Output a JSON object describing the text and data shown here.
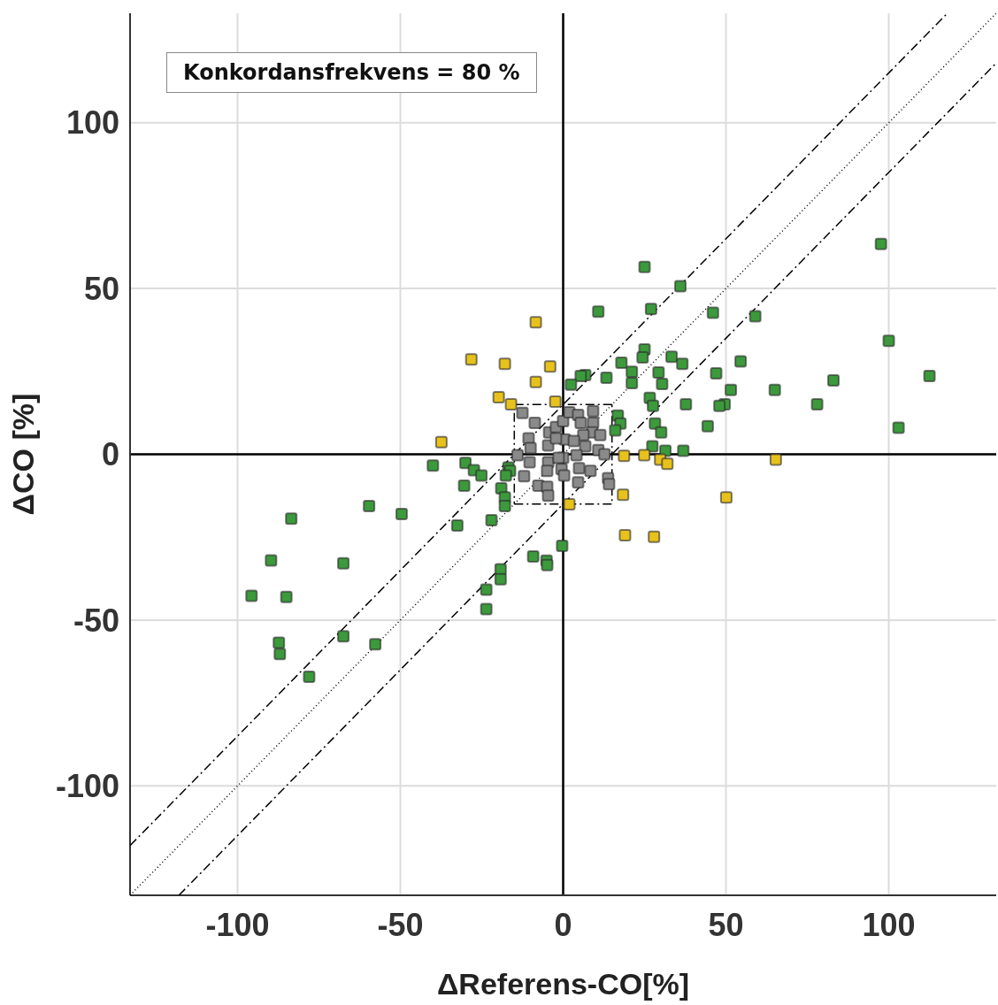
{
  "chart_data": {
    "type": "scatter",
    "xlabel": "ΔReferens-CO[%]",
    "ylabel": "ΔCO [%]",
    "annotations": [
      "Konkordansfrekvens = 80 %"
    ],
    "xlim": [
      -133,
      133
    ],
    "ylim": [
      -133,
      133
    ],
    "xticks": [
      -100,
      -50,
      0,
      50,
      100
    ],
    "yticks": [
      -100,
      -50,
      0,
      50,
      100
    ],
    "grid": true,
    "legend": false,
    "series": [
      {
        "type": "line",
        "color": "#000000",
        "line_style": "dotted",
        "marker": "none",
        "x": [
          -133,
          133
        ],
        "values": [
          -133,
          133
        ]
      },
      {
        "type": "line",
        "color": "#000000",
        "line_style": "dashed",
        "marker": "none",
        "x": [
          -133,
          118
        ],
        "values": [
          -118,
          133
        ]
      },
      {
        "type": "line",
        "color": "#000000",
        "line_style": "dashed",
        "marker": "none",
        "x": [
          -118,
          133
        ],
        "values": [
          -133,
          118
        ]
      },
      {
        "type": "line",
        "color": "#000000",
        "line_style": "dashed",
        "marker": "none",
        "x": [
          -15,
          15,
          15
        ],
        "values": [
          -15,
          -15,
          15
        ]
      },
      {
        "type": "line",
        "color": "#000000",
        "line_style": "dashed",
        "marker": "none",
        "x": [
          15,
          -15,
          -15
        ],
        "values": [
          15,
          15,
          -15
        ]
      },
      {
        "type": "scatter",
        "color": "#3c9a3c",
        "marker": "square",
        "x": [
          97.6,
          100,
          112.5,
          103,
          83,
          78,
          65,
          59,
          54.5,
          51.5,
          49.6,
          48,
          46,
          47,
          44.4,
          25,
          36,
          27,
          10.8,
          33.3,
          36.6,
          25,
          24.4,
          17.9,
          29.3,
          21.1,
          21.1,
          30.4,
          13.3,
          6.8,
          5.4,
          2.4,
          26.6,
          27.6,
          37.7,
          28.2,
          30.1,
          27.4,
          31.4,
          36.9,
          16.8,
          17.6,
          16,
          -40,
          -30,
          -27.4,
          -25.1,
          -30.4,
          -16.8,
          -16.3,
          -19,
          -17.9,
          -17.9,
          -22,
          -32.5,
          -59.6,
          -49.6,
          -83.5,
          -89.7,
          -67.5,
          -85,
          -95.7,
          -87.3,
          -87,
          -67.5,
          -57.7,
          -78,
          -19.2,
          -19.2,
          -23.6,
          -23.6,
          -9.2,
          -5.1,
          -4.9,
          -0.3,
          -17.6
        ],
        "values": [
          63.4,
          34.2,
          23.6,
          8,
          22.3,
          15.1,
          19.4,
          41.6,
          28,
          19.4,
          15.1,
          14.6,
          42.7,
          24.4,
          8.5,
          56.5,
          50.7,
          43.8,
          43,
          29.4,
          27.3,
          31.6,
          29.2,
          27.6,
          24.7,
          24.9,
          21.5,
          21.2,
          23.1,
          23.9,
          23.6,
          21,
          17,
          14.6,
          15.1,
          9.3,
          6.6,
          2.4,
          1.1,
          1.1,
          11.7,
          9.3,
          7.2,
          -3.4,
          -2.6,
          -4.8,
          -6.4,
          -9.5,
          -4,
          -5,
          -10.3,
          -13,
          -15.6,
          -19.9,
          -21.5,
          -15.6,
          -18,
          -19.4,
          -32,
          -32.9,
          -43,
          -42.7,
          -56.8,
          -60.2,
          -54.9,
          -57.3,
          -67.1,
          -34.7,
          -37.7,
          -40.8,
          -46.7,
          -30.8,
          -32.1,
          -33.4,
          -27.6,
          -6.4
        ]
      },
      {
        "type": "scatter",
        "color": "#e8c21c",
        "marker": "square",
        "x": [
          -8.4,
          -28.2,
          -17.9,
          -4,
          -8.4,
          -19.8,
          -16,
          -2.4,
          -37.4,
          18.7,
          24.9,
          29.8,
          32,
          65.3,
          50.1,
          18.4,
          1.9,
          19,
          27.9
        ],
        "values": [
          39.8,
          28.6,
          27.3,
          26.5,
          21.8,
          17.2,
          15.1,
          15.9,
          3.7,
          -0.5,
          -0.3,
          -1.6,
          -2.9,
          -1.6,
          -13,
          -12.2,
          -15.1,
          -24.4,
          -24.9
        ]
      },
      {
        "type": "scatter",
        "color": "#8a8a8a",
        "marker": "square",
        "x": [
          -12.5,
          -8.7,
          -10.6,
          -10,
          -14,
          -10.3,
          -12,
          -7.6,
          -4.9,
          -4.6,
          -4.6,
          -4.3,
          -2.2,
          0,
          1.9,
          4.6,
          9.2,
          9.2,
          8.9,
          11.4,
          6.2,
          0.5,
          3.3,
          6.8,
          0,
          4.1,
          10.8,
          12.7,
          -4.6,
          -4.9,
          -1.4,
          -0.5,
          0.3,
          4.9,
          8.4,
          4.6,
          13.8,
          14.1,
          -2.2,
          5.4
        ],
        "values": [
          12.5,
          9.5,
          4.8,
          1.9,
          -0.3,
          -2.4,
          -6.6,
          -9.5,
          -9.8,
          -12.5,
          2.7,
          6.6,
          8.2,
          10,
          12.7,
          11.9,
          13,
          9.5,
          6.6,
          5.8,
          5.8,
          4.5,
          4,
          2.4,
          -1.1,
          -0.3,
          1.3,
          0,
          -2.4,
          -5,
          -1.1,
          -4.5,
          -6.4,
          -4.2,
          -5,
          -8.5,
          -7.2,
          -9,
          4.8,
          9.5
        ]
      }
    ]
  }
}
